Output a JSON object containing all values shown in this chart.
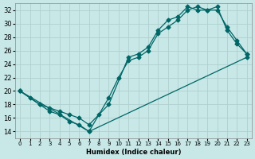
{
  "xlabel": "Humidex (Indice chaleur)",
  "ylabel": "",
  "background_color": "#c8e8e8",
  "grid_color": "#b0d0d0",
  "line_color": "#006666",
  "xlim": [
    -0.5,
    23.5
  ],
  "ylim": [
    13,
    33
  ],
  "xticks": [
    0,
    1,
    2,
    3,
    4,
    5,
    6,
    7,
    8,
    9,
    10,
    11,
    12,
    13,
    14,
    15,
    16,
    17,
    18,
    19,
    20,
    21,
    22,
    23
  ],
  "yticks": [
    14,
    16,
    18,
    20,
    22,
    24,
    26,
    28,
    30,
    32
  ],
  "line1_x": [
    0,
    1,
    2,
    3,
    4,
    5,
    6,
    7,
    9,
    10,
    11,
    12,
    13,
    14,
    15,
    16,
    17,
    18,
    19,
    20,
    21,
    22,
    23
  ],
  "line1_y": [
    20,
    19,
    18,
    17,
    16.5,
    15.5,
    15.0,
    14.0,
    19.0,
    22.0,
    24.5,
    25.0,
    26.0,
    28.5,
    29.5,
    30.5,
    32.0,
    32.5,
    32.0,
    32.5,
    29.0,
    27.0,
    25.5
  ],
  "line2_x": [
    0,
    2,
    3,
    4,
    5,
    6,
    7,
    8,
    9,
    11,
    12,
    13,
    14,
    15,
    16,
    17,
    18,
    19,
    20,
    21,
    22,
    23
  ],
  "line2_y": [
    20,
    18,
    17.5,
    17,
    16.5,
    16.0,
    15.0,
    16.5,
    18.0,
    25.0,
    25.5,
    26.5,
    29.0,
    30.5,
    31.0,
    32.5,
    32.0,
    32.0,
    32.0,
    29.5,
    27.5,
    25.5
  ],
  "line3_x": [
    0,
    7,
    23
  ],
  "line3_y": [
    20,
    14,
    25
  ],
  "marker": "D",
  "markersize": 2.5,
  "linewidth": 0.9
}
